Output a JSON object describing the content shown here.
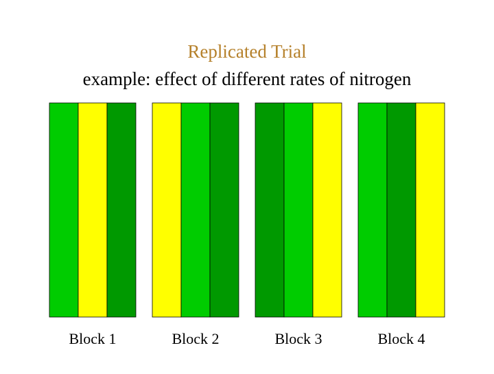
{
  "header": {
    "title": "Replicated Trial",
    "subtitle": "example: effect of different rates of nitrogen"
  },
  "blocks": [
    {
      "label": "Block 1",
      "plots": [
        "#00cc00",
        "#ffff00",
        "#009900"
      ]
    },
    {
      "label": "Block 2",
      "plots": [
        "#ffff00",
        "#00cc00",
        "#009900"
      ]
    },
    {
      "label": "Block 3",
      "plots": [
        "#009900",
        "#00cc00",
        "#ffff00"
      ]
    },
    {
      "label": "Block 4",
      "plots": [
        "#00cc00",
        "#009900",
        "#ffff00"
      ]
    }
  ]
}
